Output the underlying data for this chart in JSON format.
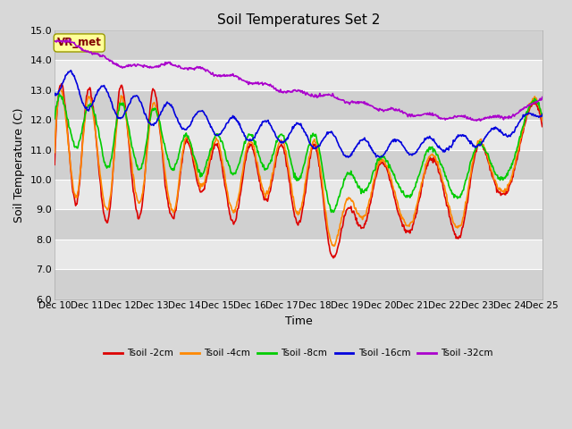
{
  "title": "Soil Temperatures Set 2",
  "xlabel": "Time",
  "ylabel": "Soil Temperature (C)",
  "ylim": [
    6.0,
    15.0
  ],
  "yticks": [
    6.0,
    7.0,
    8.0,
    9.0,
    10.0,
    11.0,
    12.0,
    13.0,
    14.0,
    15.0
  ],
  "xtick_labels": [
    "Dec 10",
    "Dec 11",
    "Dec 12",
    "Dec 13",
    "Dec 14",
    "Dec 15",
    "Dec 16",
    "Dec 17",
    "Dec 18",
    "Dec 19",
    "Dec 20",
    "Dec 21",
    "Dec 22",
    "Dec 23",
    "Dec 24",
    "Dec 25"
  ],
  "legend_label_box": "VR_met",
  "series_labels": [
    "Tsoil -2cm",
    "Tsoil -4cm",
    "Tsoil -8cm",
    "Tsoil -16cm",
    "Tsoil -32cm"
  ],
  "series_colors": [
    "#dd0000",
    "#ff8800",
    "#00cc00",
    "#0000dd",
    "#aa00cc"
  ],
  "background_color": "#d8d8d8",
  "band_colors": [
    "#d0d0d0",
    "#e8e8e8"
  ],
  "title_fontsize": 11,
  "axis_label_fontsize": 9,
  "tick_fontsize": 8,
  "n_points": 720
}
